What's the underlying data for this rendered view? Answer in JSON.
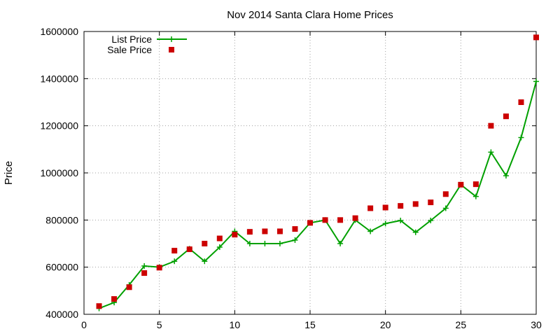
{
  "chart_data": {
    "type": "line",
    "title": "Nov 2014 Santa Clara Home Prices",
    "xlabel": "",
    "ylabel": "Price",
    "xlim": [
      0,
      30
    ],
    "ylim": [
      400000,
      1600000
    ],
    "xticks": [
      0,
      5,
      10,
      15,
      20,
      25,
      30
    ],
    "yticks": [
      400000,
      600000,
      800000,
      1000000,
      1200000,
      1400000,
      1600000
    ],
    "grid": true,
    "legend_position": "top-left",
    "x": [
      1,
      2,
      3,
      4,
      5,
      6,
      7,
      8,
      9,
      10,
      11,
      12,
      13,
      14,
      15,
      16,
      17,
      18,
      19,
      20,
      21,
      22,
      23,
      24,
      25,
      26,
      27,
      28,
      29,
      30
    ],
    "series": [
      {
        "name": "List Price",
        "style": "line-with-plus-markers",
        "color": "#00a000",
        "values": [
          425000,
          450000,
          525000,
          605000,
          600000,
          625000,
          678000,
          625000,
          685000,
          752000,
          700000,
          700000,
          700000,
          715000,
          788000,
          800000,
          700000,
          800000,
          752000,
          785000,
          798000,
          748000,
          798000,
          850000,
          950000,
          900000,
          1088000,
          988000,
          1150000,
          1388000
        ]
      },
      {
        "name": "Sale Price",
        "style": "square-markers",
        "color": "#cc0000",
        "values": [
          435000,
          465000,
          515000,
          575000,
          598000,
          670000,
          676000,
          700000,
          722000,
          738000,
          750000,
          752000,
          752000,
          762000,
          788000,
          800000,
          800000,
          808000,
          850000,
          853000,
          860000,
          868000,
          875000,
          910000,
          950000,
          952000,
          1200000,
          1240000,
          1300000,
          1575000
        ]
      }
    ]
  }
}
